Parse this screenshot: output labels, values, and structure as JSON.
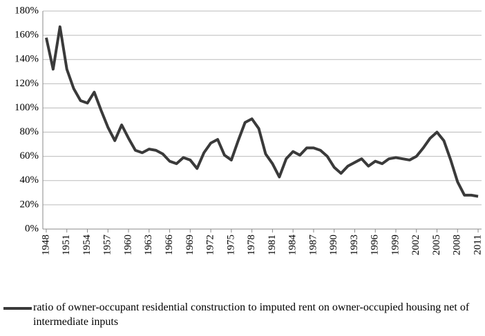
{
  "chart_data": {
    "type": "line",
    "x": [
      1948,
      1949,
      1950,
      1951,
      1952,
      1953,
      1954,
      1955,
      1956,
      1957,
      1958,
      1959,
      1960,
      1961,
      1962,
      1963,
      1964,
      1965,
      1966,
      1967,
      1968,
      1969,
      1970,
      1971,
      1972,
      1973,
      1974,
      1975,
      1976,
      1977,
      1978,
      1979,
      1980,
      1981,
      1982,
      1983,
      1984,
      1985,
      1986,
      1987,
      1988,
      1989,
      1990,
      1991,
      1992,
      1993,
      1994,
      1995,
      1996,
      1997,
      1998,
      1999,
      2000,
      2001,
      2002,
      2003,
      2004,
      2005,
      2006,
      2007,
      2008,
      2009,
      2010,
      2011
    ],
    "series": [
      {
        "name": "ratio of owner-occupant residential construction to imputed rent on owner-occupied housing net of intermediate inputs",
        "color": "#3a3a3a",
        "values": [
          158,
          132,
          167,
          132,
          116,
          106,
          104,
          113,
          98,
          84,
          73,
          86,
          75,
          65,
          63,
          66,
          65,
          62,
          56,
          54,
          59,
          57,
          50,
          63,
          71,
          74,
          61,
          57,
          73,
          88,
          91,
          83,
          62,
          54,
          43,
          58,
          64,
          61,
          67,
          67,
          65,
          60,
          51,
          46,
          52,
          55,
          58,
          52,
          56,
          54,
          58,
          59,
          58,
          57,
          60,
          67,
          75,
          80,
          73,
          57,
          39,
          28,
          28,
          27
        ]
      }
    ],
    "xlim": [
      1947.5,
      2011.5
    ],
    "xticks": [
      1948,
      1951,
      1954,
      1957,
      1960,
      1963,
      1966,
      1969,
      1972,
      1975,
      1978,
      1981,
      1984,
      1987,
      1990,
      1993,
      1996,
      1999,
      2002,
      2005,
      2008,
      2011
    ],
    "ylim": [
      0,
      180
    ],
    "yticks": [
      {
        "value": 0,
        "label": "0%"
      },
      {
        "value": 20,
        "label": "20%"
      },
      {
        "value": 40,
        "label": "40%"
      },
      {
        "value": 60,
        "label": "60%"
      },
      {
        "value": 80,
        "label": "80%"
      },
      {
        "value": 100,
        "label": "100%"
      },
      {
        "value": 120,
        "label": "120%"
      },
      {
        "value": 140,
        "label": "140%"
      },
      {
        "value": 160,
        "label": "160%"
      },
      {
        "value": 180,
        "label": "180%"
      }
    ],
    "grid": true,
    "legend": "bottom"
  }
}
